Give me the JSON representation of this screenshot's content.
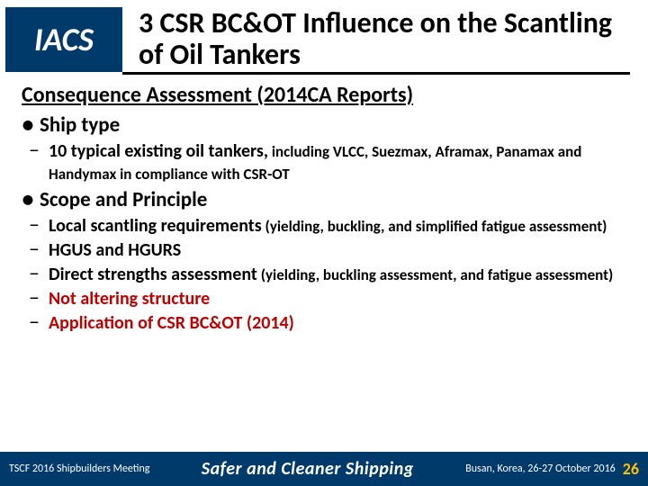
{
  "logo": {
    "text": "IACS"
  },
  "title": "3 CSR BC&OT Influence on the Scantling of Oil Tankers",
  "content": {
    "section_heading": "Consequence Assessment (2014CA Reports)",
    "bullets": [
      {
        "level": 1,
        "text": "Ship type"
      },
      {
        "level": 2,
        "main": "10 typical existing oil tankers,",
        "note": " including VLCC, Suezmax, Aframax, Panamax and Handymax  in compliance with CSR-OT"
      },
      {
        "level": 1,
        "text": "Scope and Principle"
      },
      {
        "level": 2,
        "main": "Local scantling requirements",
        "note": " (yielding, buckling, and simplified fatigue assessment)"
      },
      {
        "level": 2,
        "main": "HGUS and HGURS"
      },
      {
        "level": 2,
        "main": "Direct strengths assessment",
        "note": " (yielding, buckling assessment, and fatigue assessment)"
      },
      {
        "level": 2,
        "main": "Not altering structure",
        "red": true
      },
      {
        "level": 2,
        "main": "Application of CSR BC&OT (2014)",
        "red": true
      }
    ]
  },
  "footer": {
    "left": "TSCF 2016 Shipbuilders Meeting",
    "tagline": "Safer and Cleaner Shipping",
    "right": "Busan, Korea, 26-27 October 2016",
    "page": "26"
  },
  "colors": {
    "brand_blue": "#003a6b",
    "accent_red": "#c00000",
    "page_yellow": "#ffc000"
  }
}
